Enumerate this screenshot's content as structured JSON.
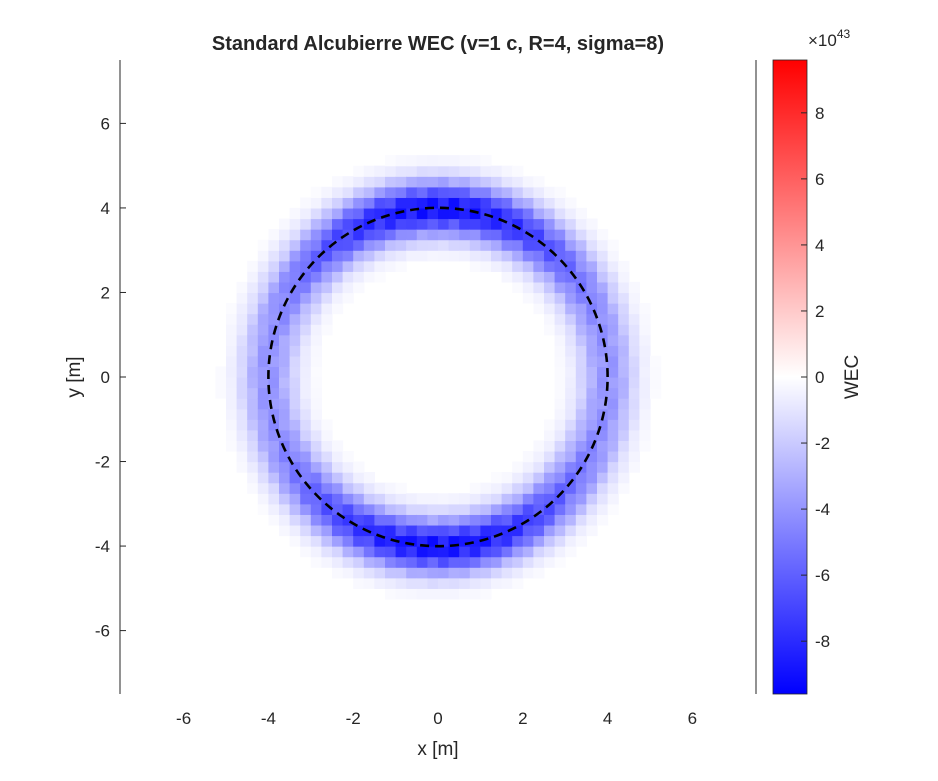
{
  "chart_data": {
    "type": "heatmap",
    "title": "Standard Alcubierre WEC (v=1 c, R=4, sigma=8)",
    "xlabel": "x [m]",
    "ylabel": "y [m]",
    "xlim": [
      -7.5,
      7.5
    ],
    "ylim": [
      -7.5,
      7.5
    ],
    "x_ticks": [
      -6,
      -4,
      -2,
      0,
      2,
      4,
      6
    ],
    "y_ticks": [
      -6,
      -4,
      -2,
      0,
      2,
      4,
      6
    ],
    "x_tick_labels": [
      "-6",
      "-4",
      "-2",
      "0",
      "2",
      "4",
      "6"
    ],
    "y_tick_labels": [
      "-6",
      "-4",
      "-2",
      "0",
      "2",
      "4",
      "6"
    ],
    "grid": false,
    "grid_step": 0.25,
    "field": {
      "shape": "ring",
      "center": [
        0,
        0
      ],
      "ring_radius": 4,
      "ring_width": 0.45,
      "peak_value": -9.6,
      "peak_angles_deg": [
        90,
        270
      ]
    },
    "overlay": {
      "shape": "circle",
      "radius": 4,
      "style": "dashed",
      "color": "#000000"
    },
    "colorbar": {
      "label": "WEC",
      "range": [
        -9.6,
        9.6
      ],
      "multiplier": "×10",
      "exponent": "43",
      "ticks": [
        8,
        6,
        4,
        2,
        0,
        -2,
        -4,
        -6,
        -8
      ],
      "tick_labels": [
        "8",
        "6",
        "4",
        "2",
        "0",
        "-2",
        "-4",
        "-6",
        "-8"
      ],
      "colors": {
        "low": "#0000ff",
        "mid": "#ffffff",
        "high": "#ff0000"
      }
    }
  }
}
